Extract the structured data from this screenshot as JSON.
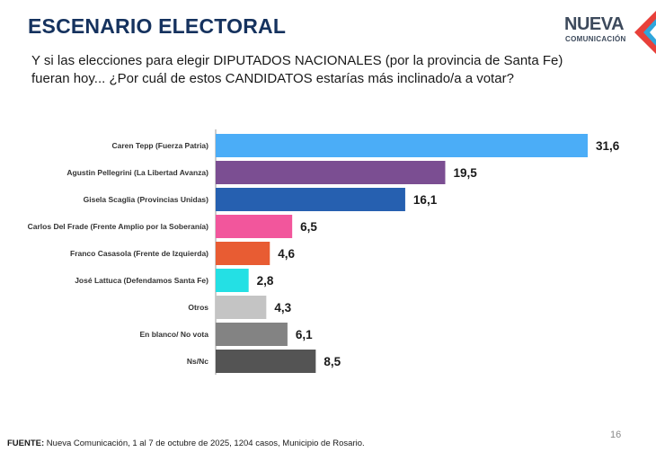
{
  "header": {
    "title": "ESCENARIO ELECTORAL",
    "logo_word": "NUEVA",
    "logo_sub": "COMUNICACIÓN"
  },
  "question": {
    "line1": "Y si las elecciones para elegir DIPUTADOS NACIONALES (por la provincia de Santa Fe)",
    "line2": "fueran hoy... ¿Por cuál de estos CANDIDATOS estarías más inclinado/a a votar?"
  },
  "chart_data": {
    "type": "bar",
    "orientation": "horizontal",
    "categories": [
      "Caren Tepp (Fuerza Patria)",
      "Agustin Pellegrini (La Libertad Avanza)",
      "Gisela Scaglia (Provincias Unidas)",
      "Carlos Del Frade (Frente Amplio por la Soberanía)",
      "Franco Casasola (Frente de Izquierda)",
      "José Lattuca (Defendamos Santa Fe)",
      "Otros",
      "En blanco/ No vota",
      "Ns/Nc"
    ],
    "values": [
      31.6,
      19.5,
      16.1,
      6.5,
      4.6,
      2.8,
      4.3,
      6.1,
      8.5
    ],
    "value_labels": [
      "31,6",
      "19,5",
      "16,1",
      "6,5",
      "4,6",
      "2,8",
      "4,3",
      "6,1",
      "8,5"
    ],
    "colors": [
      "#4badf7",
      "#7b4e92",
      "#2660b0",
      "#f2569c",
      "#e85c33",
      "#24e0e4",
      "#c4c4c4",
      "#838383",
      "#545454"
    ],
    "xlim": [
      0,
      31.6
    ],
    "grid": false,
    "legend": "none"
  },
  "footer": {
    "page_number": "16",
    "source_label": "FUENTE:",
    "source_text": " Nueva Comunicación, 1 al 7 de octubre de 2025, 1204 casos, Municipio de Rosario."
  },
  "colors": {
    "title": "#15325e",
    "logo_text": "#3d4a5c",
    "logo_red": "#e8403a",
    "logo_blue": "#2fa6dc"
  }
}
